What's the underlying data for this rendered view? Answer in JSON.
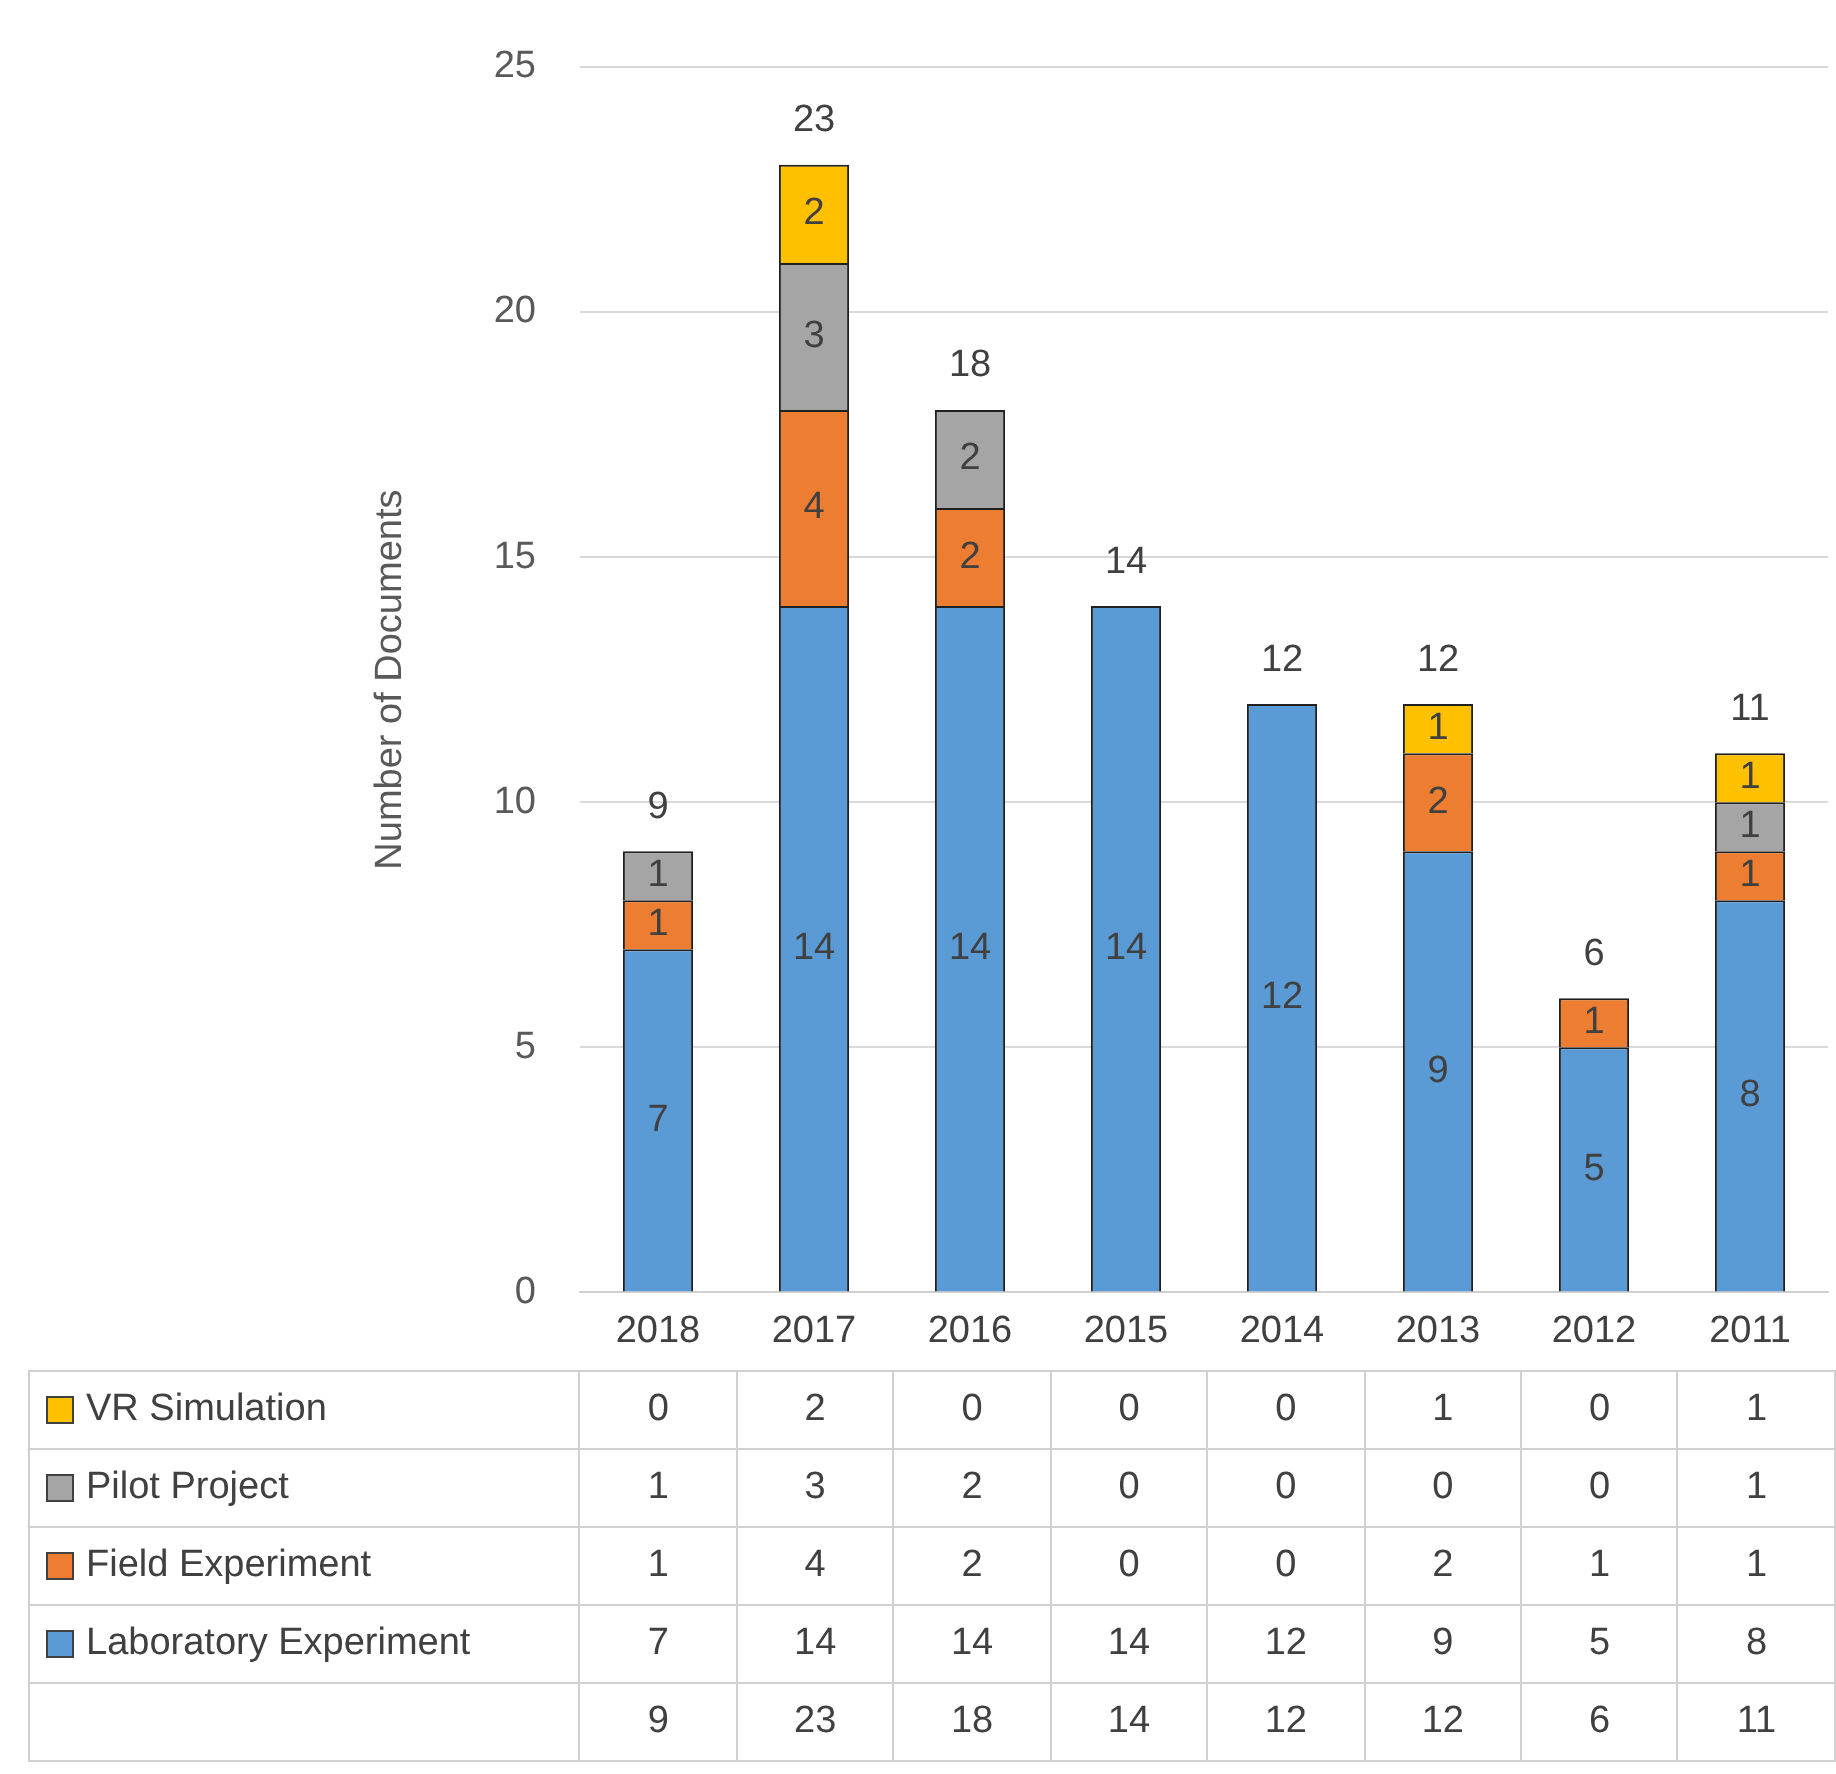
{
  "chart_data": {
    "type": "bar",
    "stacked": true,
    "ylabel": "Number of Documents",
    "categories": [
      "2018",
      "2017",
      "2016",
      "2015",
      "2014",
      "2013",
      "2012",
      "2011"
    ],
    "series": [
      {
        "name": "Laboratory Experiment",
        "color": "#5b9bd5",
        "values": [
          7,
          14,
          14,
          14,
          12,
          9,
          5,
          8
        ]
      },
      {
        "name": "Field Experiment",
        "color": "#ed7d31",
        "values": [
          1,
          4,
          2,
          0,
          0,
          2,
          1,
          1
        ]
      },
      {
        "name": "Pilot Project",
        "color": "#a5a5a5",
        "values": [
          1,
          3,
          2,
          0,
          0,
          0,
          0,
          1
        ]
      },
      {
        "name": "VR Simulation",
        "color": "#ffc000",
        "values": [
          0,
          2,
          0,
          0,
          0,
          1,
          0,
          1
        ]
      }
    ],
    "annotations": [
      "7",
      "1",
      "1",
      "14",
      "4",
      "3",
      "2",
      "14",
      "2",
      "2",
      "14",
      "12",
      "9",
      "2",
      "1",
      "5",
      "1",
      "8",
      "1",
      "1",
      "1"
    ],
    "totals": [
      "9",
      "23",
      "18",
      "14",
      "12",
      "12",
      "6",
      "11"
    ],
    "ylim": [
      0,
      25
    ],
    "yticks": [
      0,
      5,
      10,
      15,
      20,
      25
    ],
    "grid": "y",
    "data_labels": true,
    "legend": "bottom"
  }
}
